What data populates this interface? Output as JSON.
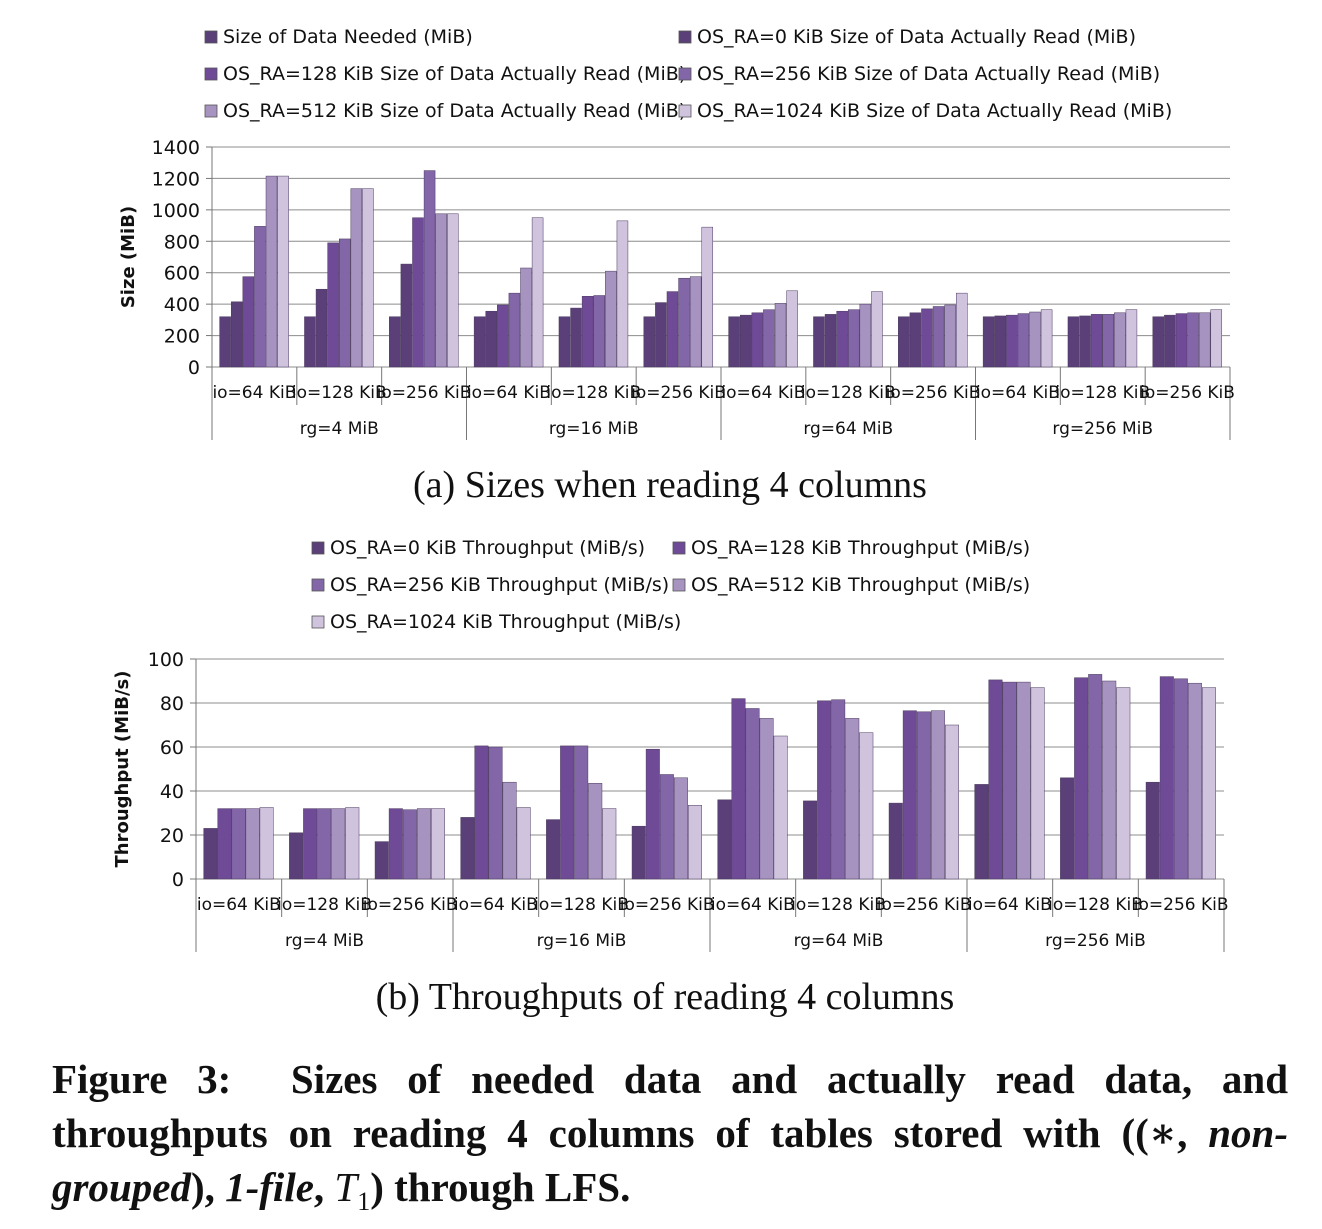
{
  "colors": {
    "needed": "#5b3f78",
    "ra0": "#5b3f78",
    "ra128": "#6f4a96",
    "ra256": "#8266a8",
    "ra512": "#a693c0",
    "ra1024": "#cfc3de",
    "grid": "#8c8c8c"
  },
  "chart_data": [
    {
      "type": "bar",
      "caption": "(a) Sizes when reading 4 columns",
      "ylabel": "Size (MiB)",
      "ylim": [
        0,
        1400
      ],
      "yticks": [
        "0",
        "200",
        "400",
        "600",
        "800",
        "1000",
        "1200",
        "1400"
      ],
      "groups": [
        "rg=4 MiB",
        "rg=16 MiB",
        "rg=64 MiB",
        "rg=256 MiB"
      ],
      "categories": [
        "io=64 KiB",
        "io=128 KiB",
        "io=256 KiB",
        "io=64 KiB",
        "io=128 KiB",
        "io=256 KiB",
        "io=64 KiB",
        "io=128 KiB",
        "io=256 KiB",
        "io=64 KiB",
        "io=128 KiB",
        "io=256 KiB"
      ],
      "series": [
        {
          "name": "Size of Data Needed (MiB)",
          "color_key": "needed",
          "values": [
            320,
            320,
            320,
            320,
            320,
            320,
            320,
            320,
            320,
            320,
            320,
            320
          ]
        },
        {
          "name": "OS_RA=0 KiB Size of Data Actually Read (MiB)",
          "color_key": "ra0",
          "values": [
            415,
            495,
            655,
            355,
            375,
            410,
            330,
            335,
            345,
            325,
            325,
            330
          ]
        },
        {
          "name": "OS_RA=128 KiB Size of Data Actually Read (MiB)",
          "color_key": "ra128",
          "values": [
            575,
            790,
            950,
            395,
            450,
            480,
            345,
            355,
            370,
            330,
            335,
            340
          ]
        },
        {
          "name": "OS_RA=256 KiB Size of Data Actually Read (MiB)",
          "color_key": "ra256",
          "values": [
            895,
            815,
            1250,
            470,
            455,
            565,
            365,
            365,
            385,
            340,
            335,
            345
          ]
        },
        {
          "name": "OS_RA=512 KiB Size of Data Actually Read (MiB)",
          "color_key": "ra512",
          "values": [
            1215,
            1135,
            975,
            630,
            610,
            575,
            405,
            400,
            395,
            350,
            345,
            345
          ]
        },
        {
          "name": "OS_RA=1024 KiB Size of Data Actually Read (MiB)",
          "color_key": "ra1024",
          "values": [
            1215,
            1135,
            975,
            950,
            930,
            890,
            485,
            480,
            470,
            365,
            365,
            365
          ]
        }
      ]
    },
    {
      "type": "bar",
      "caption": "(b) Throughputs of reading 4 columns",
      "ylabel": "Throughput (MiB/s)",
      "ylim": [
        0,
        100
      ],
      "yticks": [
        "0",
        "20",
        "40",
        "60",
        "80",
        "100"
      ],
      "groups": [
        "rg=4 MiB",
        "rg=16 MiB",
        "rg=64 MiB",
        "rg=256 MiB"
      ],
      "categories": [
        "io=64 KiB",
        "io=128 KiB",
        "io=256 KiB",
        "io=64 KiB",
        "io=128 KiB",
        "io=256 KiB",
        "io=64 KiB",
        "io=128 KiB",
        "io=256 KiB",
        "io=64 KiB",
        "io=128 KiB",
        "io=256 KiB"
      ],
      "series": [
        {
          "name": "OS_RA=0 KiB Throughput (MiB/s)",
          "color_key": "ra0",
          "values": [
            23,
            21,
            17,
            28,
            27,
            24,
            36,
            35.5,
            34.5,
            43,
            46,
            44
          ]
        },
        {
          "name": "OS_RA=128 KiB Throughput (MiB/s)",
          "color_key": "ra128",
          "values": [
            32,
            32,
            32,
            60.5,
            60.5,
            59,
            82,
            81,
            76.5,
            90.5,
            91.5,
            92
          ]
        },
        {
          "name": "OS_RA=256 KiB Throughput (MiB/s)",
          "color_key": "ra256",
          "values": [
            32,
            32,
            31.5,
            60,
            60.5,
            47.5,
            77.5,
            81.5,
            76,
            89.5,
            93,
            91
          ]
        },
        {
          "name": "OS_RA=512 KiB Throughput (MiB/s)",
          "color_key": "ra512",
          "values": [
            32,
            32,
            32,
            44,
            43.5,
            46,
            73,
            73,
            76.5,
            89.5,
            90,
            89
          ]
        },
        {
          "name": "OS_RA=1024 KiB Throughput (MiB/s)",
          "color_key": "ra1024",
          "values": [
            32.5,
            32.5,
            32,
            32.5,
            32,
            33.5,
            65,
            66.5,
            70,
            87,
            87,
            87
          ]
        }
      ]
    }
  ],
  "figure_caption": {
    "label": "Figure 3:",
    "text_1": "Sizes of needed data and actually read data, and throughputs on reading 4 columns of tables stored with ((∗, ",
    "em_1": "non-grouped",
    "text_2": "), ",
    "em_2": "1-file",
    "text_3": ", ",
    "math": "T",
    "math_sub": "1",
    "text_4": ") through LFS."
  }
}
